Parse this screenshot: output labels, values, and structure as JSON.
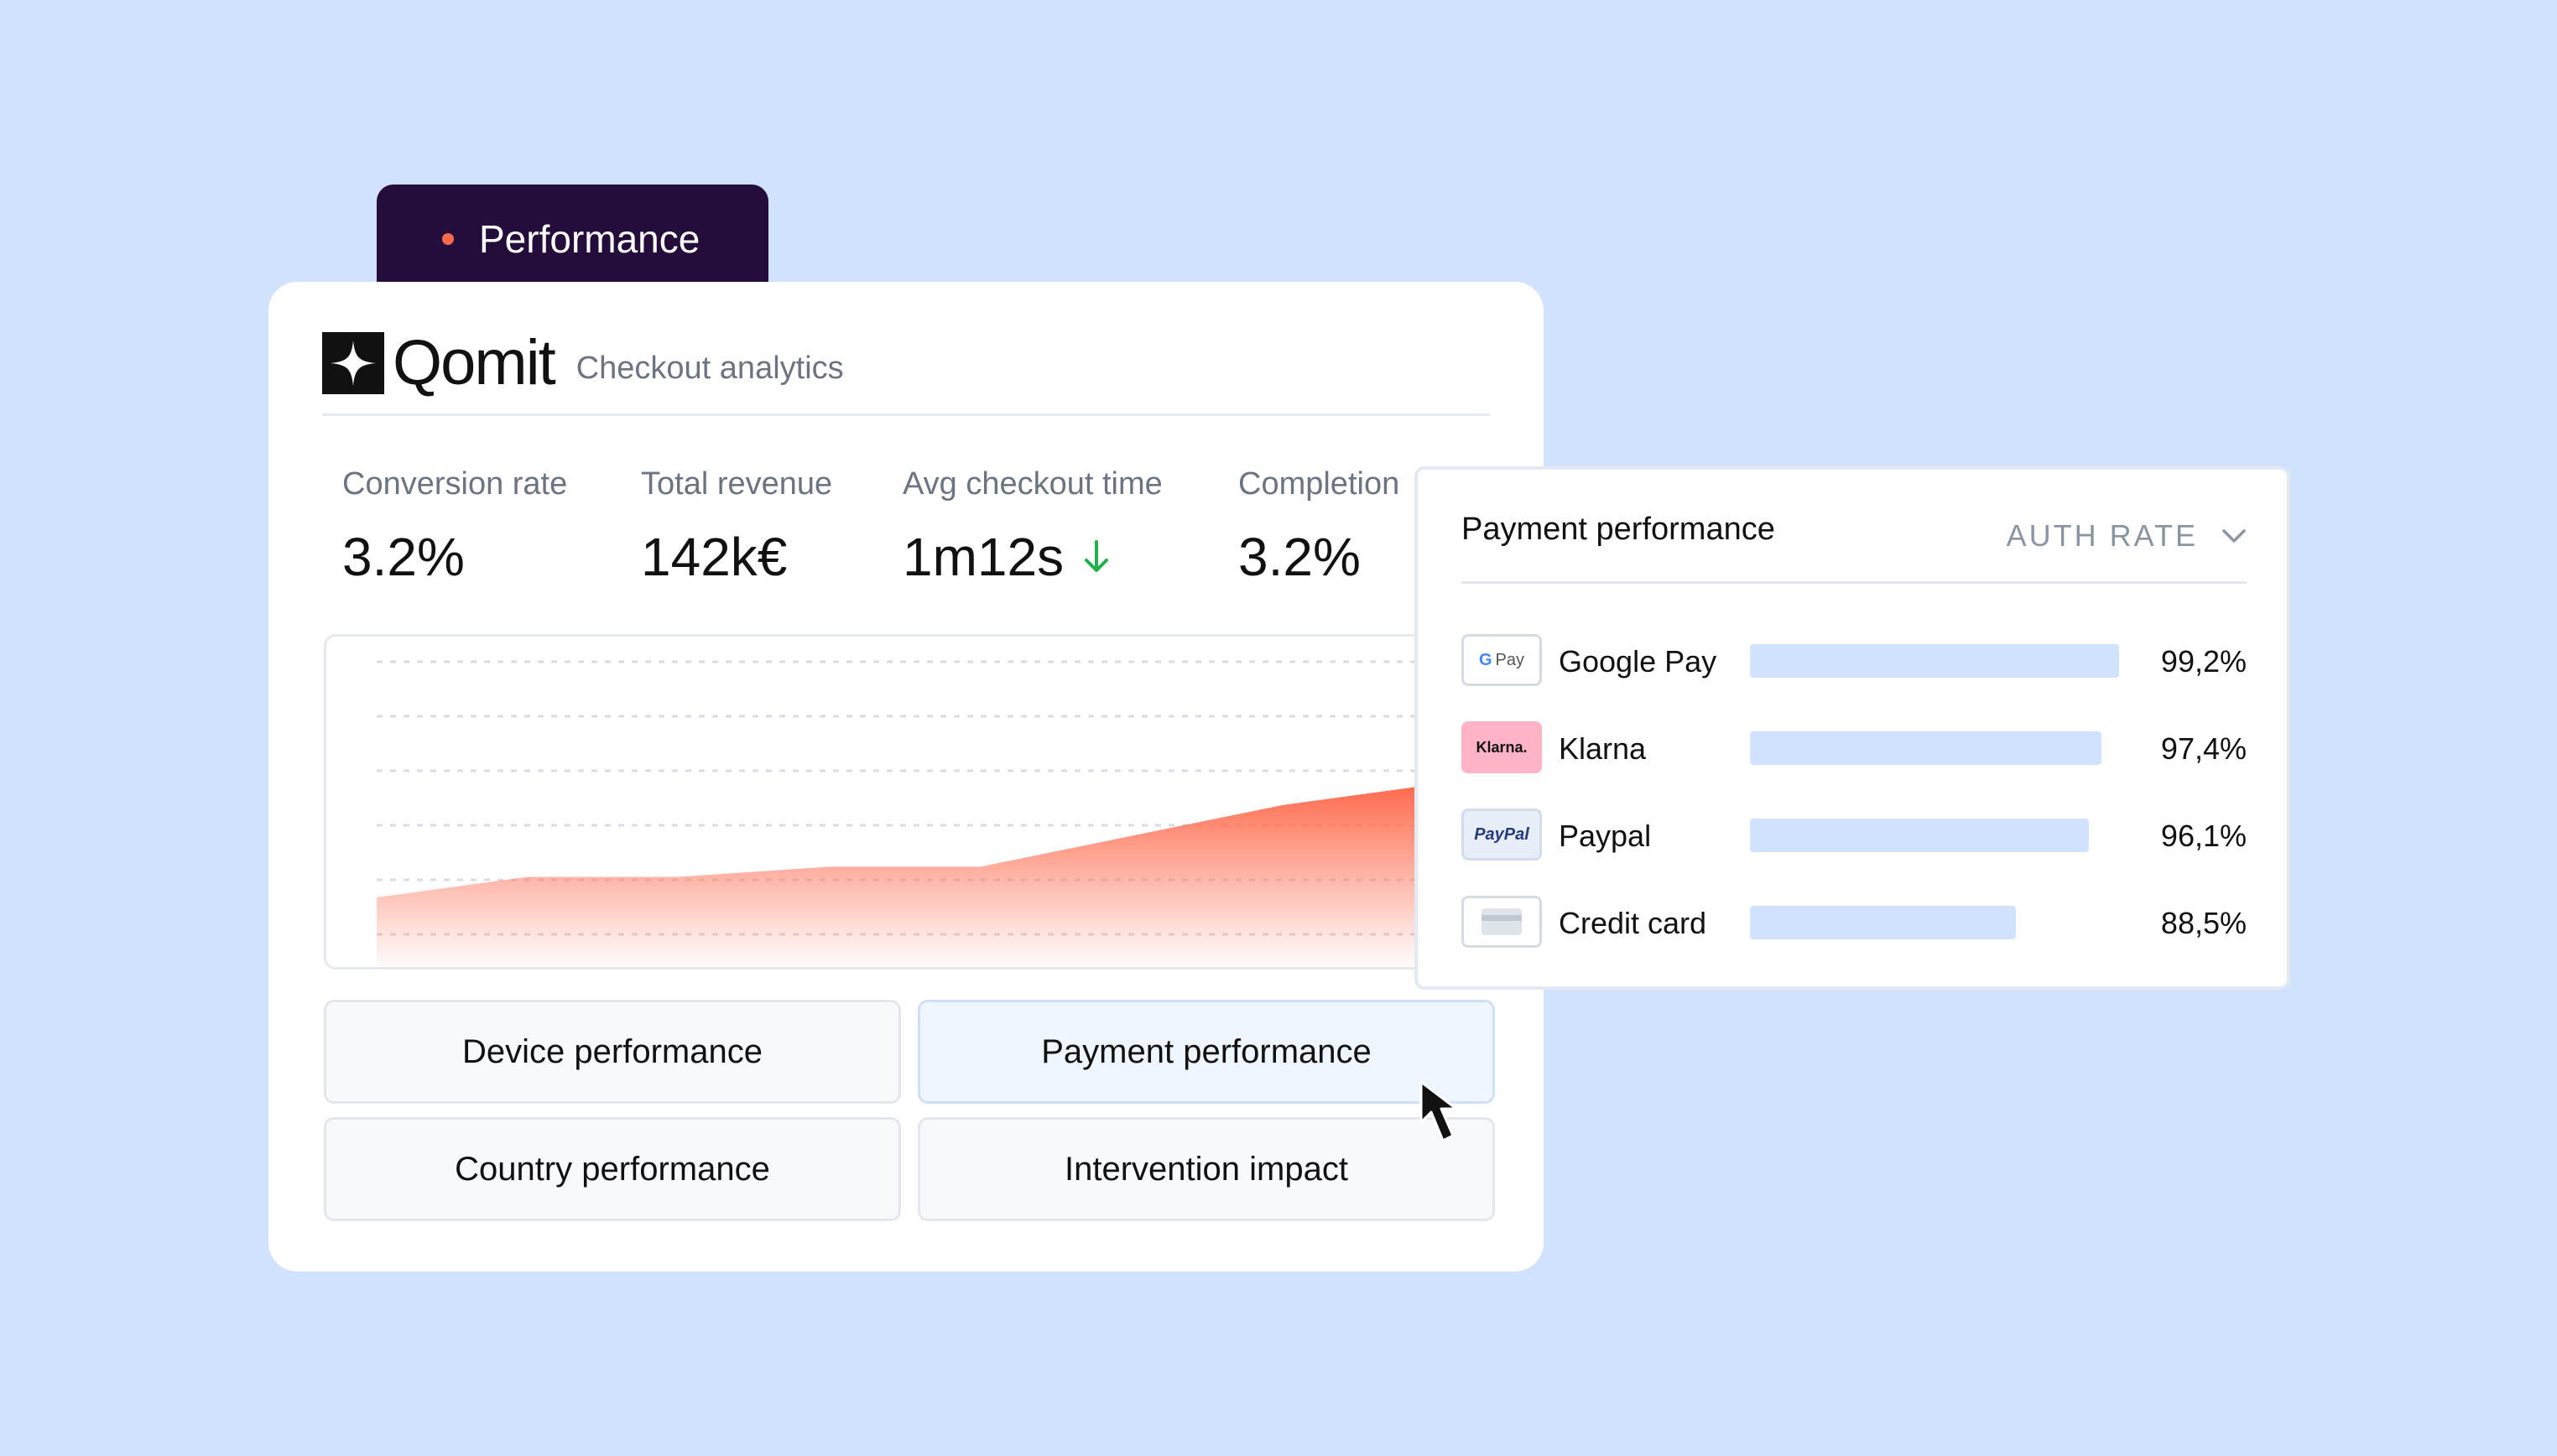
{
  "tab": {
    "label": "Performance",
    "accent": "#ff6a4d"
  },
  "header": {
    "brand": "Qomit",
    "subtitle": "Checkout analytics"
  },
  "metrics": [
    {
      "label": "Conversion rate",
      "value": "3.2%"
    },
    {
      "label": "Total revenue",
      "value": "142k€"
    },
    {
      "label": "Avg checkout time",
      "value": "1m12s",
      "trend_icon": "arrow-down-icon",
      "trend_color": "#22b04b"
    },
    {
      "label": "Completion",
      "value": "3.2%"
    }
  ],
  "chart_data": {
    "type": "area",
    "title": "",
    "xlabel": "",
    "ylabel": "",
    "x": [
      0,
      1,
      2,
      3,
      4,
      5,
      6,
      7
    ],
    "values": [
      2.0,
      3.0,
      3.0,
      3.5,
      3.5,
      5.0,
      6.5,
      7.5
    ],
    "ylim": [
      0,
      10
    ],
    "grid": true,
    "color": "#ff6a4d"
  },
  "nav_buttons": [
    {
      "label": "Device performance",
      "active": false
    },
    {
      "label": "Payment performance",
      "active": true
    },
    {
      "label": "Country performance",
      "active": false
    },
    {
      "label": "Intervention impact",
      "active": false
    }
  ],
  "payment_panel": {
    "title": "Payment performance",
    "metric_select": {
      "label": "AUTH RATE",
      "icon": "chevron-down-icon"
    },
    "methods": [
      {
        "name": "Google Pay",
        "logo_text": "Pay",
        "value": "99,2%",
        "level": 0.992
      },
      {
        "name": "Klarna",
        "logo_text": "Klarna.",
        "value": "97,4%",
        "level": 0.974
      },
      {
        "name": "Paypal",
        "logo_text": "PayPal",
        "value": "96,1%",
        "level": 0.961
      },
      {
        "name": "Credit card",
        "logo_text": "",
        "value": "88,5%",
        "level": 0.885
      }
    ]
  }
}
